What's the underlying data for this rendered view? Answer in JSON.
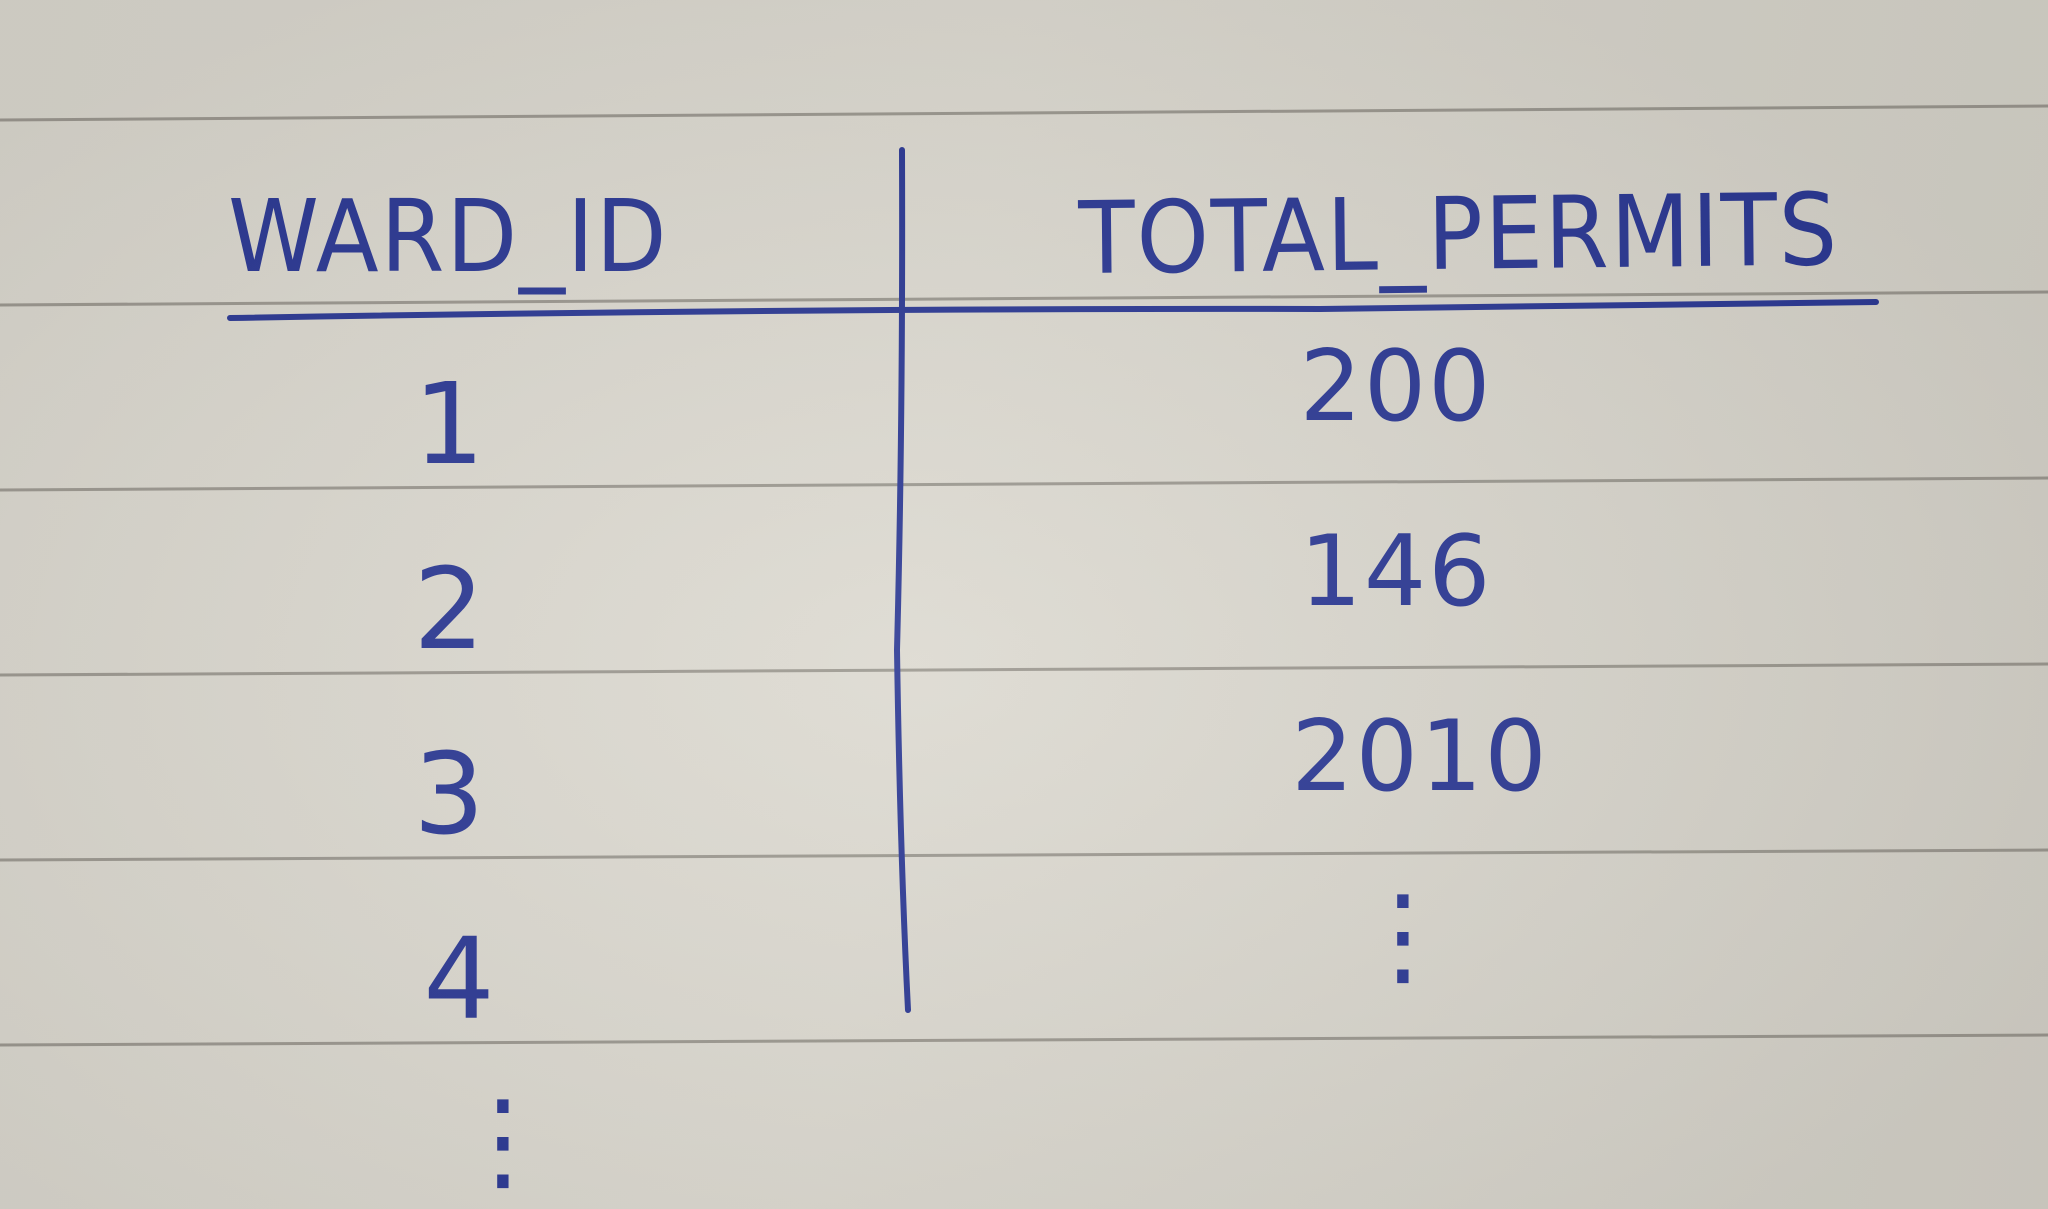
{
  "headers": {
    "ward_id": "WARD_ID",
    "total_permits": "TOTAL_PERMITS"
  },
  "rows": [
    {
      "ward_id": "1",
      "total_permits": "200"
    },
    {
      "ward_id": "2",
      "total_permits": "146"
    },
    {
      "ward_id": "3",
      "total_permits": "2010"
    },
    {
      "ward_id": "4",
      "total_permits": ""
    }
  ],
  "continuation": {
    "ward_id": "⋮",
    "total_permits": "⋮"
  },
  "colors": {
    "ink": "#2b3893",
    "paper": "#d9d6cd",
    "ruled_line": "#8f8c84"
  }
}
